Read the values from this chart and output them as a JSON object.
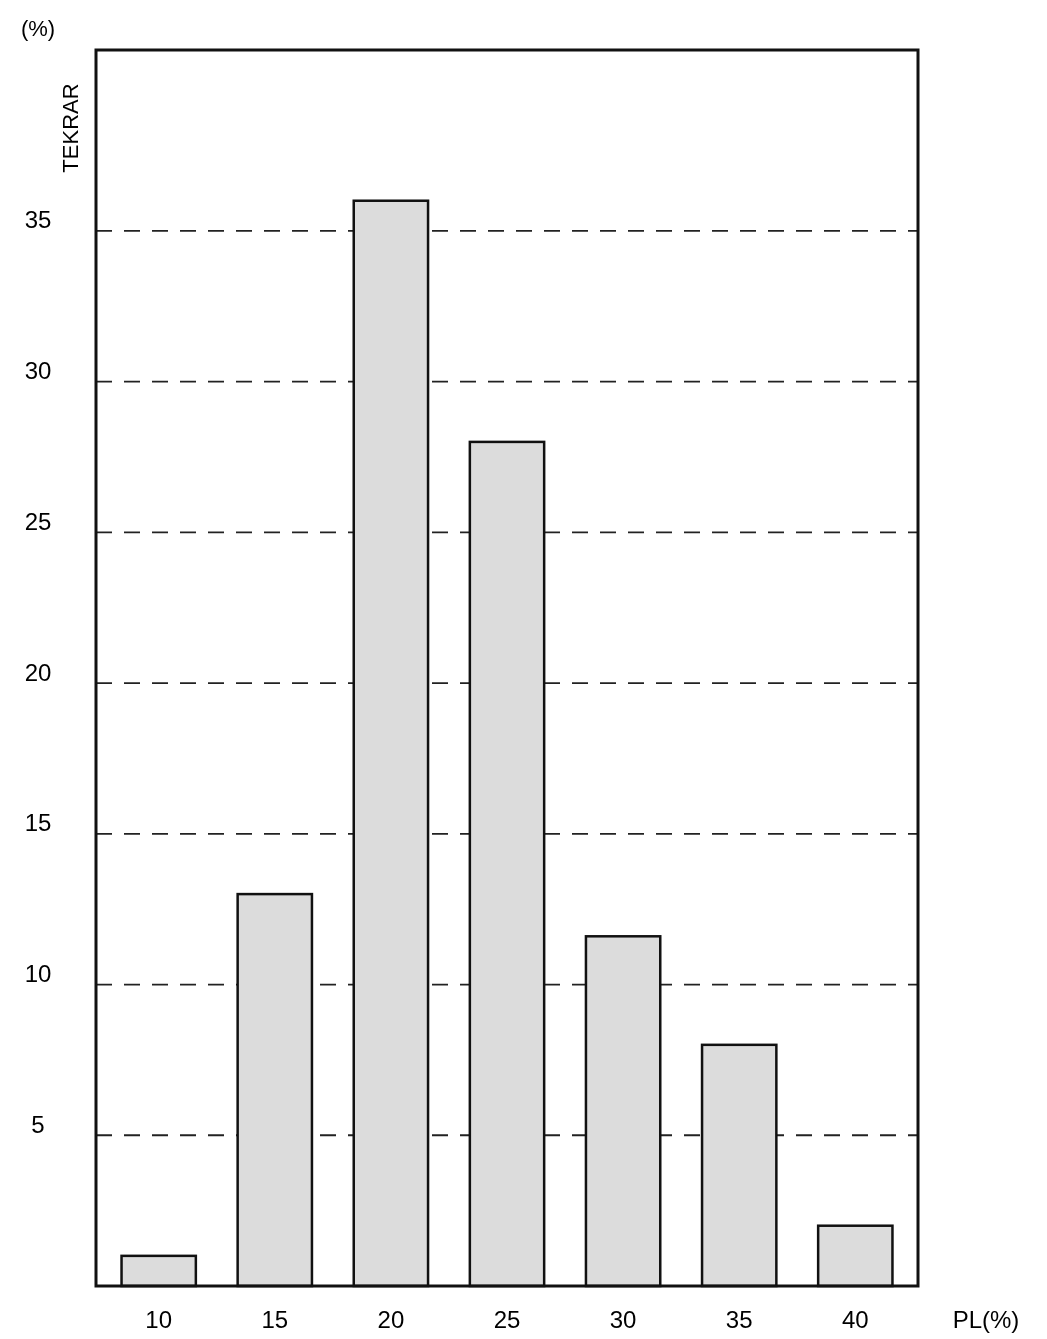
{
  "chart_data": {
    "type": "bar",
    "xlabel": "PL(%)",
    "ylabel": "TEKRAR",
    "annotations": [
      "(%)"
    ],
    "categories": [
      "10",
      "15",
      "20",
      "25",
      "30",
      "35",
      "40"
    ],
    "values": [
      1,
      13,
      36,
      28,
      11.6,
      8,
      2
    ],
    "color": "#dcdcdc",
    "ylim": [
      0,
      41
    ],
    "yticks": [
      5,
      10,
      15,
      20,
      25,
      30,
      35
    ],
    "grid": "y"
  }
}
